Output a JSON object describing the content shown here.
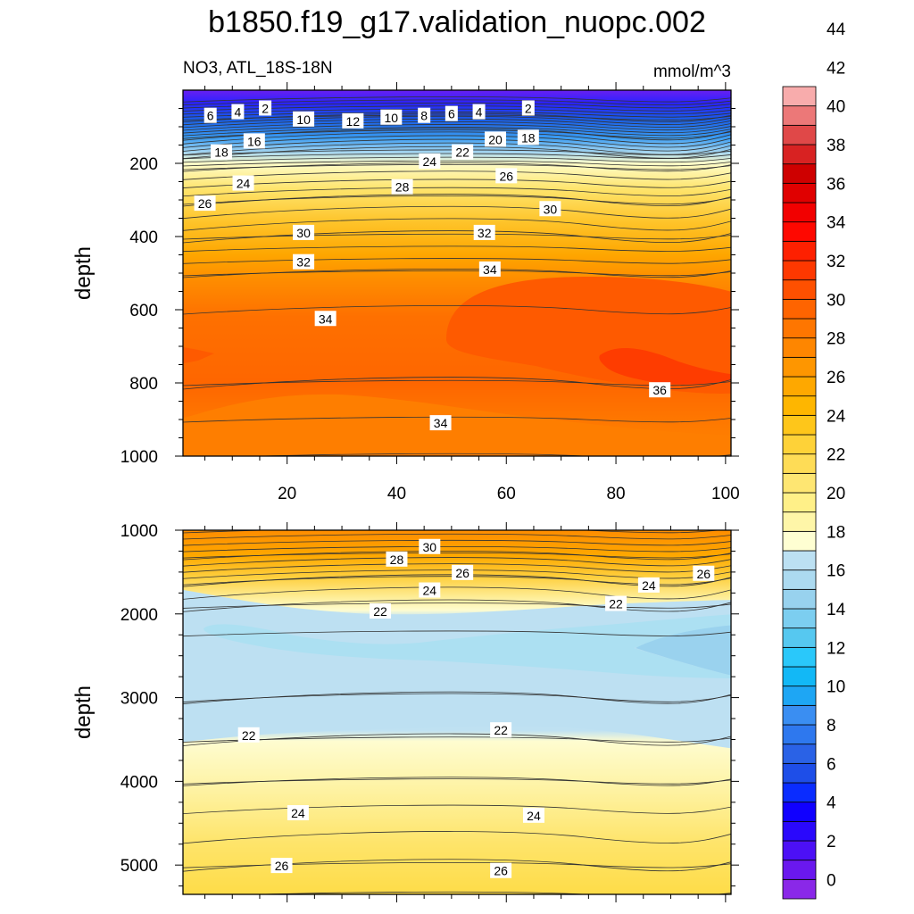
{
  "title": "b1850.f19_g17.validation_nuopc.002",
  "subtitle_left": "NO3, ATL_18S-18N",
  "subtitle_right": "mmol/m^3",
  "colorbar": {
    "labels": [
      "0",
      "2",
      "4",
      "6",
      "8",
      "10",
      "12",
      "14",
      "16",
      "18",
      "20",
      "22",
      "24",
      "26",
      "28",
      "30",
      "32",
      "34",
      "36",
      "38",
      "40",
      "42",
      "44"
    ],
    "colors": [
      "#8a28e8",
      "#6a18ee",
      "#4c10f6",
      "#2a08fc",
      "#1000ff",
      "#0a2cff",
      "#1e4ee8",
      "#2a62e6",
      "#2e78ee",
      "#3a8ef2",
      "#1ea6f4",
      "#12b8f6",
      "#2ac8fa",
      "#56c8f0",
      "#7ccef0",
      "#98d2ee",
      "#acdaf0",
      "#bce0f2",
      "#fefed2",
      "#fef6a8",
      "#fff088",
      "#fee672",
      "#fedc56",
      "#fed238",
      "#fec61a",
      "#feb600",
      "#fea800",
      "#fe9600",
      "#fe8600",
      "#fe7600",
      "#fe6400",
      "#fe5000",
      "#fe3800",
      "#fe2000",
      "#fe0800",
      "#f20000",
      "#e00000",
      "#ce0000",
      "#d82222",
      "#e04848",
      "#ec7878",
      "#f8acac"
    ]
  },
  "chart_data": [
    {
      "panel": "top",
      "type": "contour",
      "title": "b1850.f19_g17.validation_nuopc.002",
      "subtitle": "NO3, ATL_18S-18N",
      "units": "mmol/m^3",
      "xlabel": "",
      "ylabel": "depth",
      "xlim": [
        1,
        101
      ],
      "ylim": [
        1000,
        0
      ],
      "xticks": [
        20,
        40,
        60,
        80,
        100
      ],
      "yticks": [
        200,
        400,
        600,
        800,
        1000
      ],
      "contour_interval": 1,
      "depth_profile": [
        {
          "depth": 25,
          "value": 2
        },
        {
          "depth": 75,
          "value": 8
        },
        {
          "depth": 120,
          "value": 14
        },
        {
          "depth": 170,
          "value": 19
        },
        {
          "depth": 210,
          "value": 23
        },
        {
          "depth": 300,
          "value": 27
        },
        {
          "depth": 400,
          "value": 30
        },
        {
          "depth": 500,
          "value": 33
        },
        {
          "depth": 650,
          "value": 34.5
        },
        {
          "depth": 800,
          "value": 35
        },
        {
          "depth": 1000,
          "value": 33
        }
      ],
      "labels": [
        {
          "x": 6,
          "depth": 70,
          "text": "6"
        },
        {
          "x": 11,
          "depth": 60,
          "text": "4"
        },
        {
          "x": 16,
          "depth": 50,
          "text": "2"
        },
        {
          "x": 23,
          "depth": 80,
          "text": "10"
        },
        {
          "x": 32,
          "depth": 85,
          "text": "12"
        },
        {
          "x": 39,
          "depth": 75,
          "text": "10"
        },
        {
          "x": 45,
          "depth": 70,
          "text": "8"
        },
        {
          "x": 50,
          "depth": 65,
          "text": "6"
        },
        {
          "x": 55,
          "depth": 60,
          "text": "4"
        },
        {
          "x": 64,
          "depth": 50,
          "text": "2"
        },
        {
          "x": 8,
          "depth": 170,
          "text": "18"
        },
        {
          "x": 14,
          "depth": 140,
          "text": "16"
        },
        {
          "x": 58,
          "depth": 135,
          "text": "20"
        },
        {
          "x": 64,
          "depth": 130,
          "text": "18"
        },
        {
          "x": 52,
          "depth": 170,
          "text": "22"
        },
        {
          "x": 46,
          "depth": 195,
          "text": "24"
        },
        {
          "x": 12,
          "depth": 255,
          "text": "24"
        },
        {
          "x": 5,
          "depth": 310,
          "text": "26"
        },
        {
          "x": 41,
          "depth": 265,
          "text": "28"
        },
        {
          "x": 60,
          "depth": 235,
          "text": "26"
        },
        {
          "x": 68,
          "depth": 325,
          "text": "30"
        },
        {
          "x": 23,
          "depth": 390,
          "text": "30"
        },
        {
          "x": 56,
          "depth": 390,
          "text": "32"
        },
        {
          "x": 23,
          "depth": 470,
          "text": "32"
        },
        {
          "x": 57,
          "depth": 490,
          "text": "34"
        },
        {
          "x": 27,
          "depth": 625,
          "text": "34"
        },
        {
          "x": 88,
          "depth": 820,
          "text": "36"
        },
        {
          "x": 48,
          "depth": 910,
          "text": "34"
        }
      ]
    },
    {
      "panel": "bottom",
      "type": "contour",
      "xlabel": "",
      "ylabel": "depth",
      "xlim": [
        1,
        101
      ],
      "ylim": [
        5350,
        1000
      ],
      "xticks": [
        20,
        40,
        60,
        80,
        100
      ],
      "yticks": [
        1000,
        2000,
        3000,
        4000,
        5000
      ],
      "contour_interval": 1,
      "depth_profile": [
        {
          "depth": 1000,
          "value": 32
        },
        {
          "depth": 1300,
          "value": 28
        },
        {
          "depth": 1600,
          "value": 24
        },
        {
          "depth": 1900,
          "value": 22
        },
        {
          "depth": 2400,
          "value": 20.5
        },
        {
          "depth": 3000,
          "value": 21
        },
        {
          "depth": 3500,
          "value": 22
        },
        {
          "depth": 4000,
          "value": 23
        },
        {
          "depth": 4500,
          "value": 24.5
        },
        {
          "depth": 5000,
          "value": 26
        },
        {
          "depth": 5350,
          "value": 27
        }
      ],
      "labels": [
        {
          "x": 46,
          "depth": 1200,
          "text": "30"
        },
        {
          "x": 40,
          "depth": 1350,
          "text": "28"
        },
        {
          "x": 52,
          "depth": 1510,
          "text": "26"
        },
        {
          "x": 46,
          "depth": 1720,
          "text": "24"
        },
        {
          "x": 37,
          "depth": 1970,
          "text": "22"
        },
        {
          "x": 96,
          "depth": 1520,
          "text": "26"
        },
        {
          "x": 86,
          "depth": 1660,
          "text": "24"
        },
        {
          "x": 80,
          "depth": 1880,
          "text": "22"
        },
        {
          "x": 13,
          "depth": 3450,
          "text": "22"
        },
        {
          "x": 59,
          "depth": 3390,
          "text": "22"
        },
        {
          "x": 22,
          "depth": 4380,
          "text": "24"
        },
        {
          "x": 65,
          "depth": 4410,
          "text": "24"
        },
        {
          "x": 19,
          "depth": 5010,
          "text": "26"
        },
        {
          "x": 59,
          "depth": 5070,
          "text": "26"
        }
      ]
    }
  ]
}
